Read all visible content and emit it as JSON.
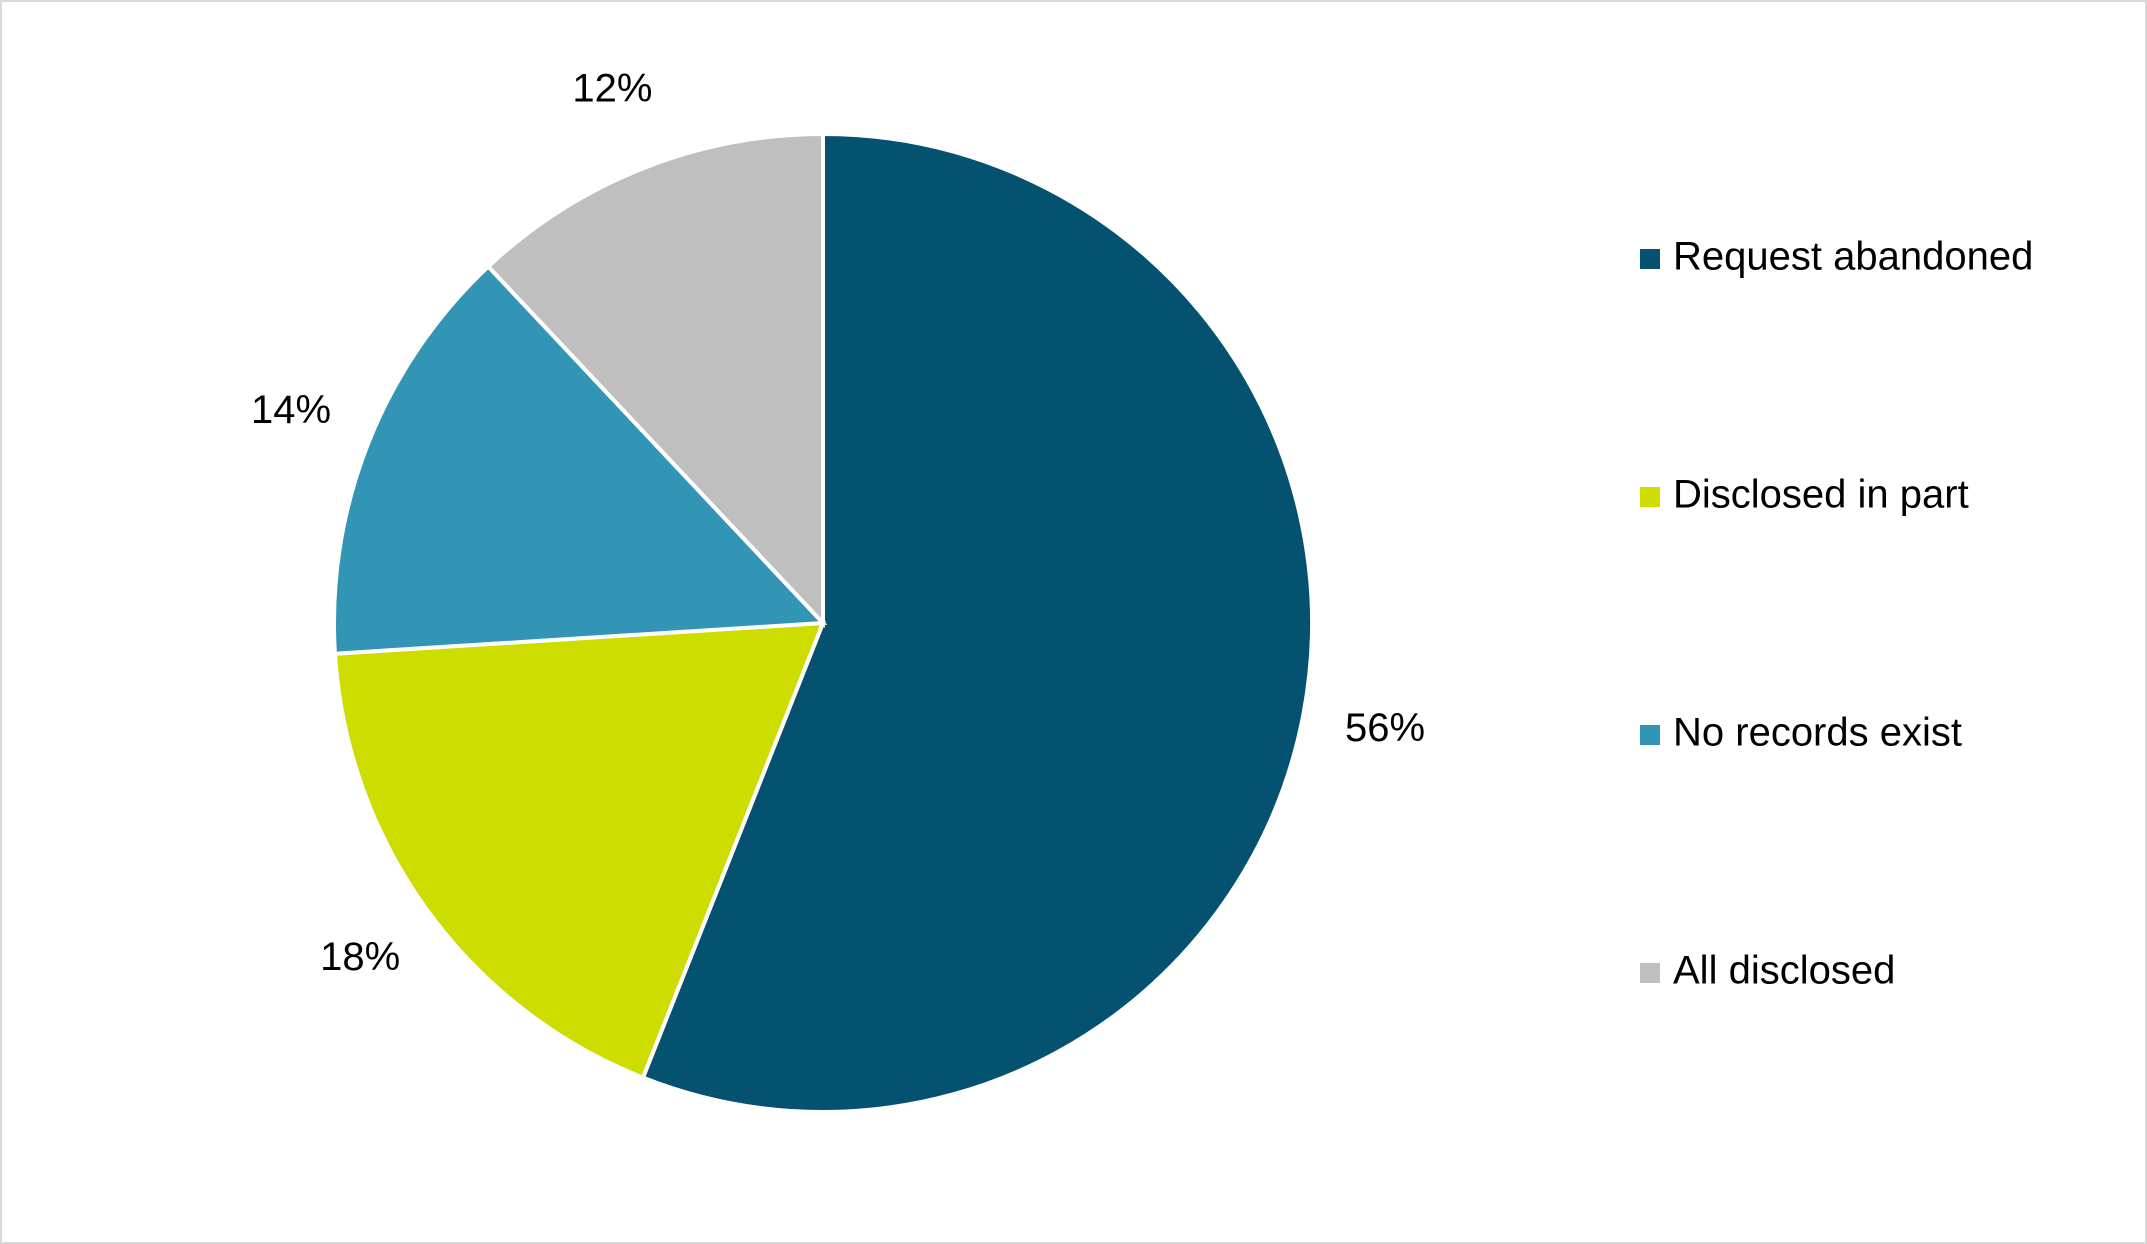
{
  "chart_data": {
    "type": "pie",
    "categories": [
      "Request abandoned",
      "Disclosed in part",
      "No records exist",
      "All disclosed"
    ],
    "values": [
      56,
      18,
      14,
      12
    ],
    "value_labels": [
      "56%",
      "18%",
      "14%",
      "12%"
    ],
    "colors": [
      "#045270",
      "#cddd00",
      "#3295b5",
      "#bfbfbf"
    ],
    "legend": "right"
  }
}
